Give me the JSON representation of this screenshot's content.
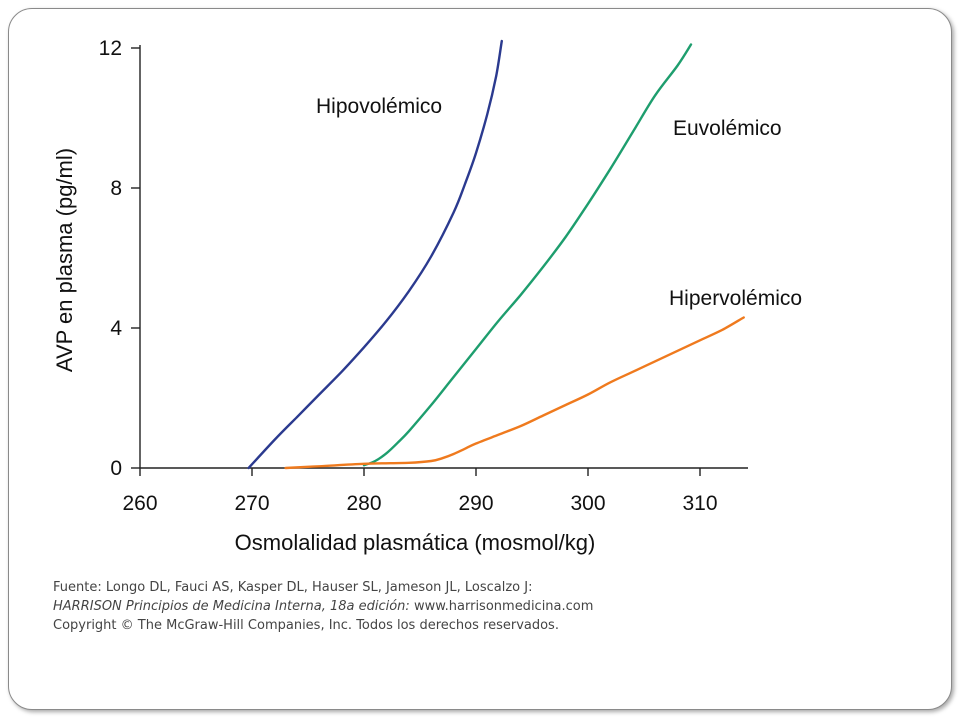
{
  "chart_data": {
    "type": "line",
    "title": "",
    "xlabel": "Osmolalidad plasmática (mosmol/kg)",
    "ylabel": "AVP en plasma (pg/ml)",
    "xlim": [
      258,
      314
    ],
    "ylim": [
      0,
      12
    ],
    "x_ticks": [
      260,
      270,
      280,
      290,
      300,
      310
    ],
    "y_ticks": [
      0,
      4,
      8,
      12
    ],
    "grid": false,
    "legend": "labels placed beside each curve",
    "series": [
      {
        "name": "Hipovolémico",
        "color": "#2b3a8f",
        "x": [
          269.7,
          272,
          274,
          276,
          278,
          280,
          282,
          284,
          286,
          288,
          289,
          290,
          291,
          291.8,
          292.3
        ],
        "y": [
          0,
          0.8,
          1.45,
          2.1,
          2.75,
          3.45,
          4.2,
          5.05,
          6.05,
          7.3,
          8.1,
          9.0,
          10.1,
          11.2,
          12.2
        ]
      },
      {
        "name": "Euvolémico",
        "color": "#1e9e6e",
        "x": [
          280,
          281,
          282,
          283,
          284,
          286,
          288,
          290,
          292,
          294,
          296,
          298,
          300,
          302,
          304,
          306,
          308,
          309.2
        ],
        "y": [
          0.08,
          0.2,
          0.42,
          0.72,
          1.05,
          1.8,
          2.6,
          3.4,
          4.2,
          4.95,
          5.75,
          6.6,
          7.55,
          8.55,
          9.6,
          10.65,
          11.5,
          12.1
        ]
      },
      {
        "name": "Hipervolémico",
        "color": "#ef7a1e",
        "x": [
          273,
          276,
          280,
          284,
          286,
          287,
          288,
          289,
          290,
          292,
          294,
          296,
          298,
          300,
          302,
          304,
          306,
          308,
          310,
          312,
          313.9
        ],
        "y": [
          0.0,
          0.05,
          0.12,
          0.15,
          0.2,
          0.28,
          0.4,
          0.55,
          0.7,
          0.95,
          1.2,
          1.5,
          1.8,
          2.1,
          2.45,
          2.75,
          3.05,
          3.35,
          3.65,
          3.95,
          4.3
        ]
      }
    ]
  },
  "source": {
    "line1": "Fuente: Longo DL, Fauci AS, Kasper DL, Hauser SL, Jameson JL, Loscalzo J:",
    "line2_italic": "HARRISON Principios de Medicina Interna, 18a edición:",
    "line2_url": " www.harrisonmedicina.com",
    "line3": "Copyright © The McGraw-Hill Companies, Inc. Todos los derechos reservados."
  }
}
